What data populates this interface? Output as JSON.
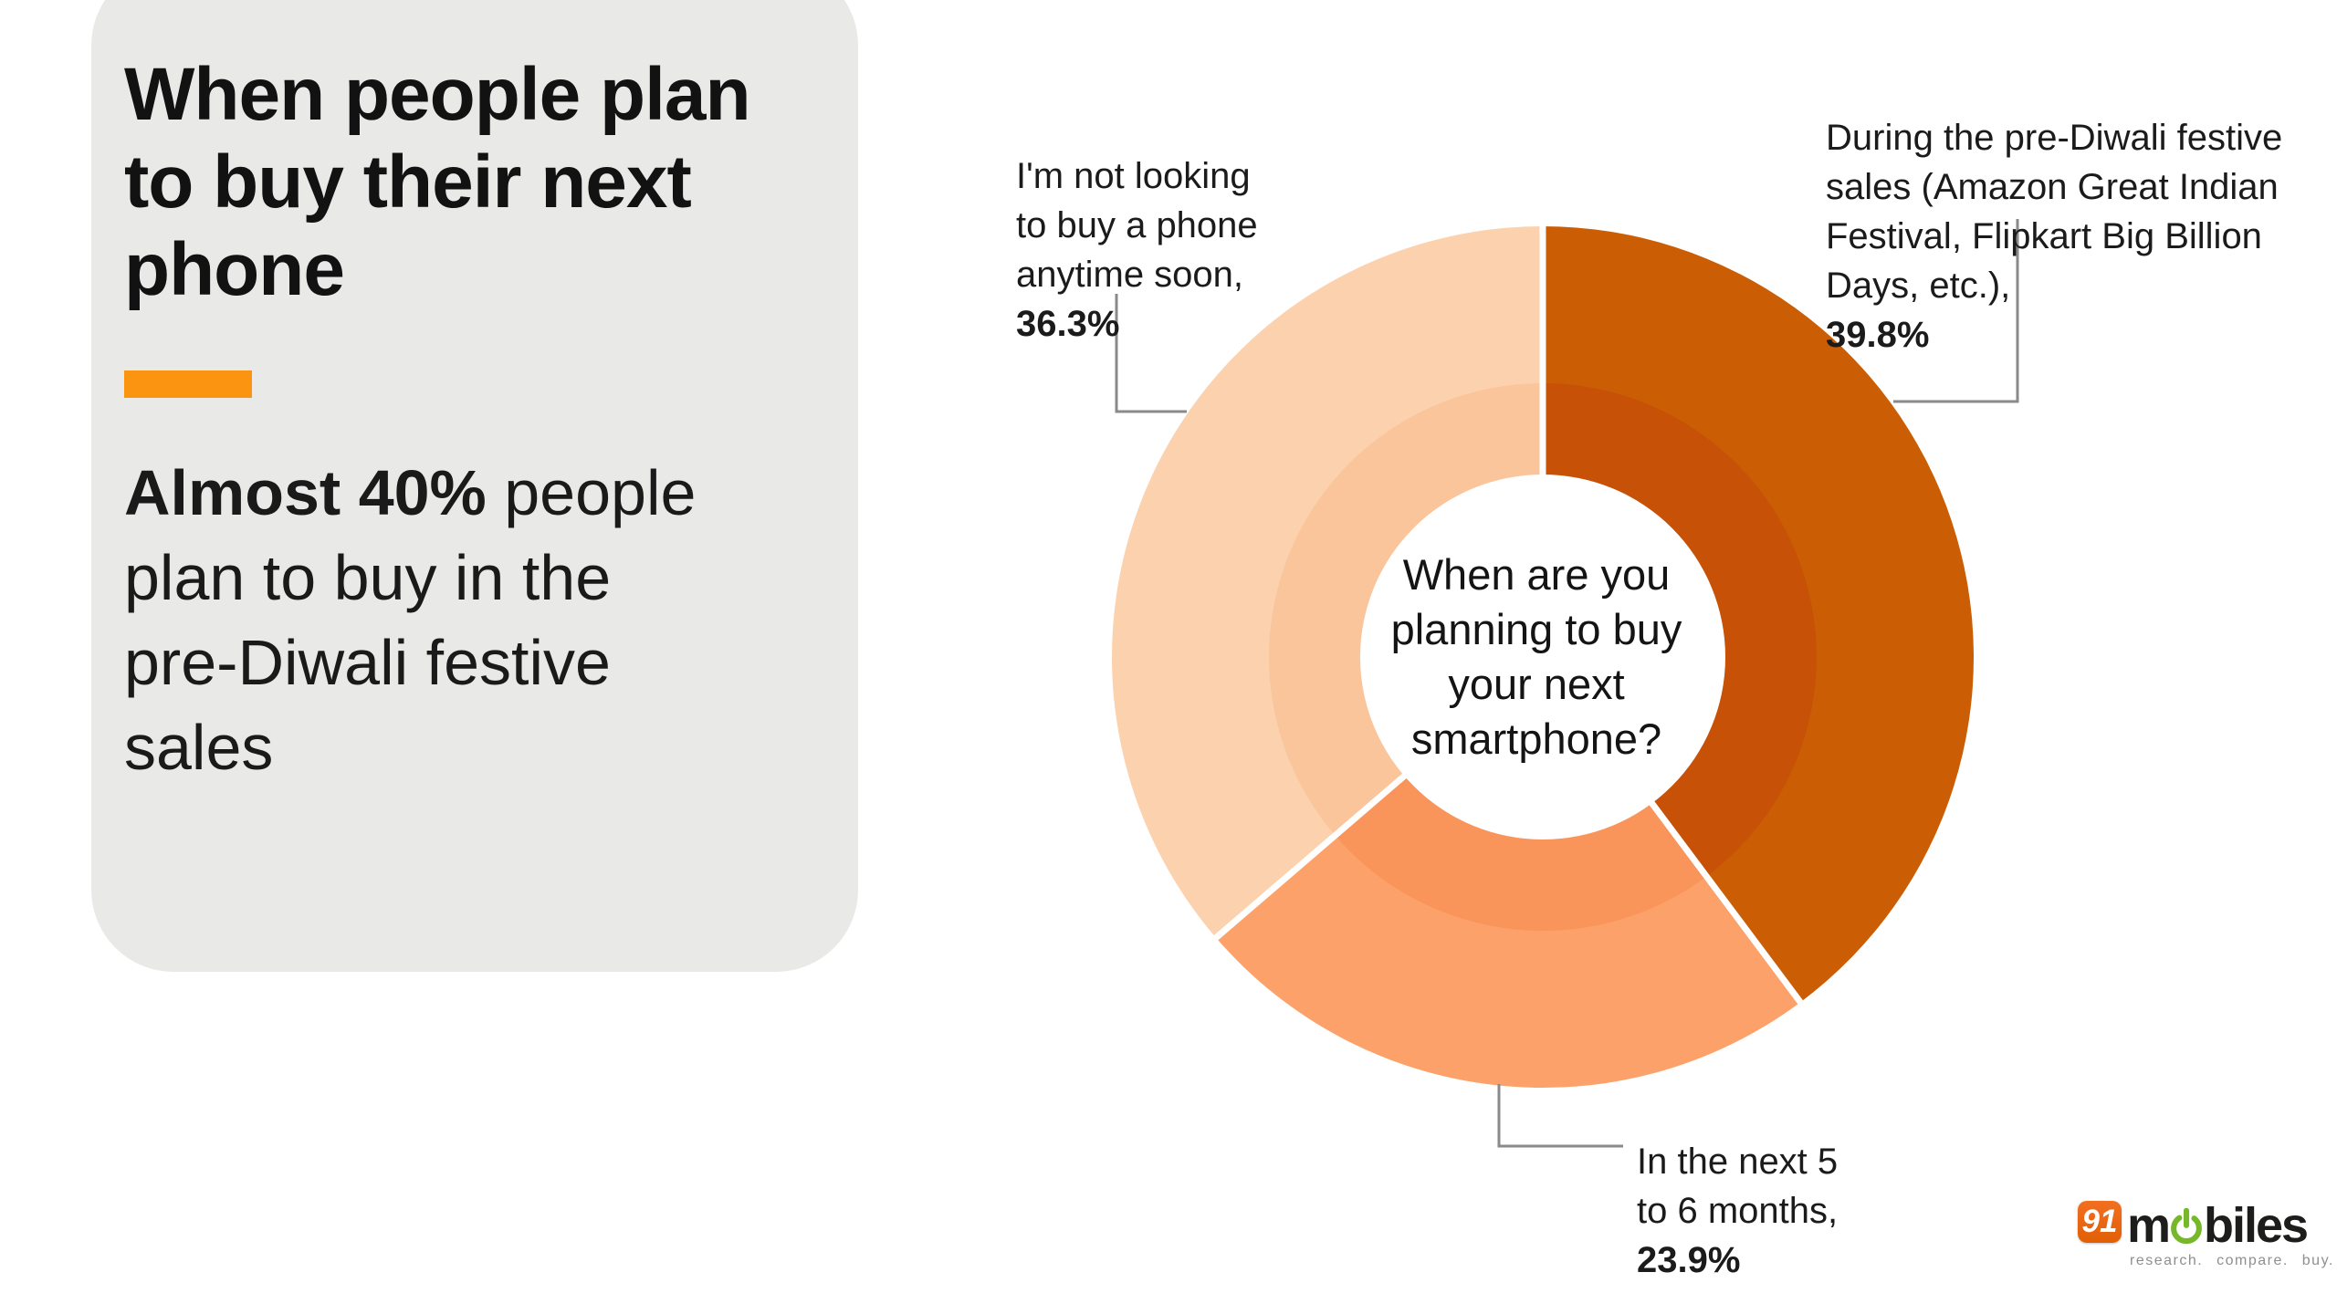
{
  "page": {
    "background": "#ffffff"
  },
  "card": {
    "background": "#e9e9e8",
    "accent_color": "#fb9410",
    "title": "When people plan\nto buy their next\nphone",
    "subtitle_bold": "Almost 40%",
    "subtitle_rest": " people\nplan to buy in the\npre-Diwali festive\nsales"
  },
  "chart_data": {
    "type": "pie",
    "donut": true,
    "title": "When are you planning to buy your next smartphone?",
    "center_text": "When are you\nplanning to buy\nyour next\nsmartphone?",
    "unit": "%",
    "start_angle_deg": 0,
    "direction": "clockwise",
    "legend_position": "callouts",
    "slices": [
      {
        "label": "During the pre-Diwali festive sales (Amazon Great Indian Festival, Flipkart Big Billion Days, etc.)",
        "value": 39.8,
        "color": "#cb5e04",
        "inner_color": "#c75107"
      },
      {
        "label": "In the next 5 to 6 months",
        "value": 23.9,
        "color": "#fca169",
        "inner_color": "#f9945a"
      },
      {
        "label": "I'm not looking to buy a phone anytime soon",
        "value": 36.3,
        "color": "#fcd2ae",
        "inner_color": "#fbc59c"
      }
    ]
  },
  "callouts": [
    {
      "text": "During the pre-Diwali festive\nsales (Amazon Great Indian\nFestival, Flipkart Big Billion\nDays, etc.),",
      "pct": "39.8%"
    },
    {
      "text": "In the next 5\nto 6 months,",
      "pct": "23.9%"
    },
    {
      "text": "I'm not looking\nto buy a phone\nanytime soon,",
      "pct": "36.3%"
    }
  ],
  "leader_color": "#8a8a8a",
  "logo": {
    "badge": "91",
    "word_start": "m",
    "word_end": "biles",
    "tagline": "research. compare. buy.",
    "badge_color": "#f26f21",
    "power_color": "#76b82a"
  }
}
